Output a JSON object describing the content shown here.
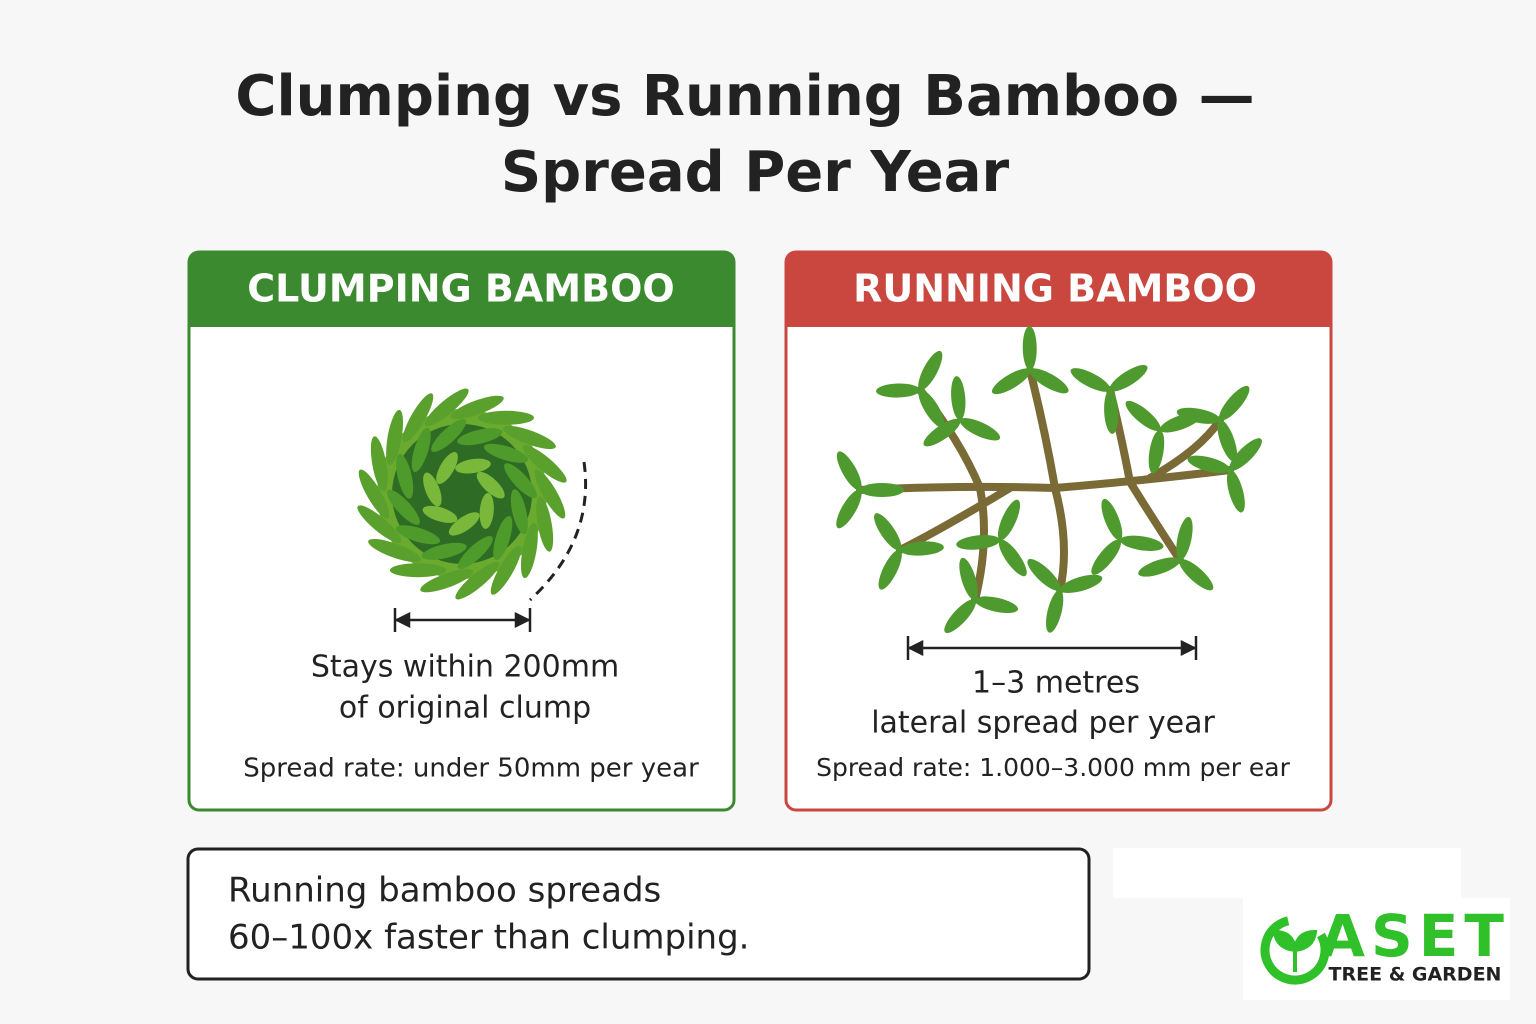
{
  "header": {
    "title_lines": [
      "Clumping vs Running Bamboo —",
      "Spread Per Year"
    ]
  },
  "panels": [
    {
      "heading": "CLUMPING BAMBOO",
      "measure_lines": [
        "Stays within 200mm",
        "of original clump"
      ],
      "rate": "Spread rate: under 50mm per year"
    },
    {
      "heading": "RUNNING BAMBOO",
      "measure_lines": [
        "1–3 metres",
        "lateral spread per year"
      ],
      "rate": "Spread rate: 1.000–3.000 mm per ear"
    }
  ],
  "summary": {
    "lines": [
      "Running bamboo spreads",
      "60–100x faster than clumping."
    ]
  },
  "logo": {
    "name": "ASET",
    "tagline": "TREE & GARDEN"
  }
}
